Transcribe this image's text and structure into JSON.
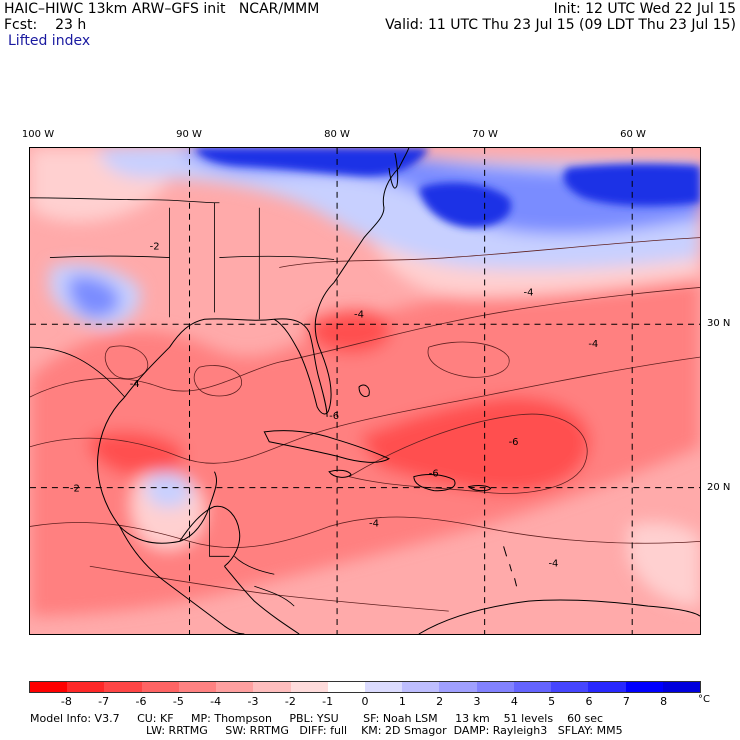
{
  "header": {
    "model": "HAIC–HIWC 13km ARW–GFS init",
    "center": "NCAR/MMM",
    "fcst_label": "Fcst:",
    "fcst_value": "23 h",
    "init": "Init: 12 UTC Wed 22 Jul 15",
    "valid": "Valid: 11 UTC Thu 23 Jul 15 (09 LDT Thu 23 Jul 15)"
  },
  "field_name": "Lifted index",
  "lon_labels": [
    "100 W",
    "90 W",
    "80 W",
    "70 W",
    "60 W"
  ],
  "lat_labels": [
    "30 N",
    "20 N"
  ],
  "colorbar": {
    "colors": [
      "#ff0000",
      "#ff2828",
      "#ff4646",
      "#ff6464",
      "#ff8282",
      "#ffa0a0",
      "#ffbebe",
      "#ffdcdc",
      "#ffffff",
      "#dcdcff",
      "#bebeff",
      "#a0a0ff",
      "#8282ff",
      "#6464ff",
      "#4646ff",
      "#2828ff",
      "#0000ff",
      "#0000dd"
    ],
    "labels": [
      "-8",
      "-7",
      "-6",
      "-5",
      "-4",
      "-3",
      "-2",
      "-1",
      "0",
      "1",
      "2",
      "3",
      "4",
      "5",
      "6",
      "7",
      "8"
    ],
    "unit": "°C"
  },
  "map_colors": {
    "base": "#ffaaaa",
    "strong_red": "#ff5050",
    "mid_red": "#ff8080",
    "light_red": "#ffd0d0",
    "blue_dark": "#1e32e6",
    "blue_mid": "#7a8cff",
    "blue_light": "#c8d0ff",
    "coast": "#000000",
    "contour": "#602020",
    "grid": "#000000"
  },
  "contour_labels": [
    "-2",
    "-4",
    "-4",
    "-6",
    "-6",
    "-4",
    "-2",
    "-4",
    "-4",
    "-6",
    "-4"
  ],
  "footer": {
    "line1": [
      "Model Info: V3.7",
      "CU: KF",
      "MP: Thompson",
      "PBL: YSU",
      "SF: Noah LSM",
      "13 km",
      "51 levels",
      "60 sec"
    ],
    "line2": [
      "LW: RRTMG",
      "SW: RRTMG",
      "DIFF: full",
      "KM: 2D Smagor",
      "DAMP: Rayleigh3",
      "SFLAY: MM5"
    ]
  }
}
